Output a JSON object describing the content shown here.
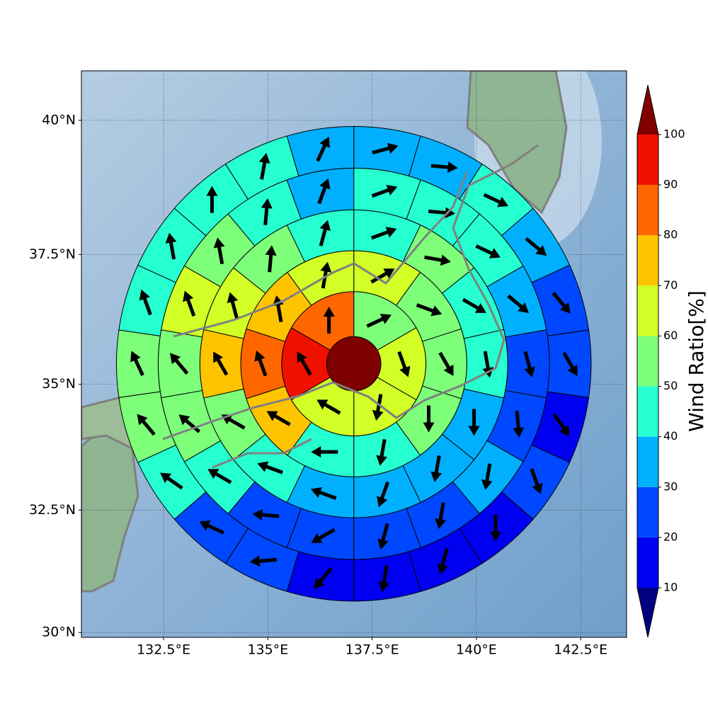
{
  "chart_data": {
    "type": "map",
    "projection": "mercator",
    "xlim": [
      130.53,
      143.6
    ],
    "ylim": [
      29.9,
      40.9
    ],
    "xticks": [
      {
        "value": 132.5,
        "label": "132.5°E"
      },
      {
        "value": 135,
        "label": "135°E"
      },
      {
        "value": 137.5,
        "label": "137.5°E"
      },
      {
        "value": 140,
        "label": "140°E"
      },
      {
        "value": 142.5,
        "label": "142.5°E"
      }
    ],
    "yticks": [
      {
        "value": 30,
        "label": "30°N"
      },
      {
        "value": 32.5,
        "label": "32.5°N"
      },
      {
        "value": 35,
        "label": "35°N"
      },
      {
        "value": 37.5,
        "label": "37.5°N"
      },
      {
        "value": 40,
        "label": "40°N"
      }
    ],
    "grid": true,
    "center": {
      "lon": 137.06,
      "lat": 35.4
    },
    "radii": [
      0.65,
      1.73,
      2.71,
      3.69,
      4.69,
      5.69
    ],
    "center_color": "#7f0000",
    "rings": [
      {
        "values": [
          55,
          65,
          65,
          65,
          95,
          85
        ],
        "directions": [
          65,
          160,
          190,
          300,
          330,
          0
        ]
      },
      {
        "values": [
          65,
          55,
          55,
          55,
          45,
          45,
          75,
          85,
          75,
          65
        ],
        "directions": [
          60,
          110,
          150,
          180,
          190,
          270,
          300,
          340,
          350,
          10
        ]
      },
      {
        "values": [
          45,
          55,
          45,
          45,
          35,
          35,
          35,
          35,
          45,
          55,
          75,
          65,
          55,
          45
        ],
        "directions": [
          70,
          100,
          120,
          170,
          180,
          190,
          200,
          290,
          290,
          300,
          330,
          345,
          5,
          15
        ]
      },
      {
        "values": [
          45,
          45,
          45,
          35,
          25,
          25,
          35,
          25,
          25,
          25,
          25,
          45,
          55,
          55,
          65,
          55,
          45,
          35
        ],
        "directions": [
          70,
          95,
          115,
          130,
          165,
          175,
          190,
          190,
          195,
          240,
          275,
          300,
          310,
          320,
          340,
          350,
          5,
          20
        ]
      },
      {
        "values": [
          35,
          35,
          45,
          35,
          25,
          25,
          15,
          25,
          15,
          15,
          15,
          15,
          25,
          25,
          45,
          55,
          55,
          45,
          45,
          45,
          45,
          35
        ],
        "directions": [
          75,
          95,
          115,
          130,
          140,
          150,
          145,
          160,
          180,
          195,
          190,
          220,
          265,
          295,
          305,
          320,
          335,
          340,
          350,
          0,
          10,
          25
        ]
      }
    ],
    "colorbar": {
      "label": "Wind Ratio[%]",
      "ticks": [
        10,
        20,
        30,
        40,
        50,
        60,
        70,
        80,
        90,
        100
      ],
      "colors": [
        "#0000f0",
        "#0048ff",
        "#00b0ff",
        "#26ffd0",
        "#7dff7a",
        "#d2ff26",
        "#ffc400",
        "#ff6600",
        "#f01000"
      ],
      "under": "#000080",
      "over": "#800000"
    },
    "arrow_color": "#000000"
  }
}
